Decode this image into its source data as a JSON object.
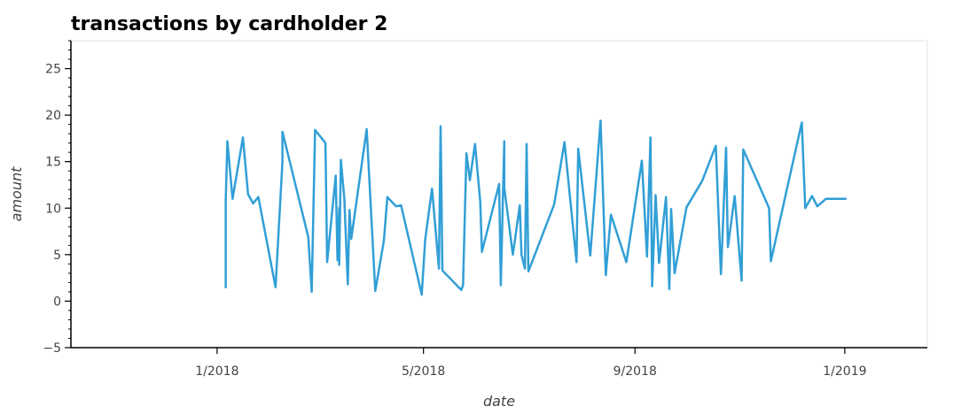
{
  "chart_data": {
    "type": "line",
    "title": "transactions by cardholder 2",
    "xlabel": "date",
    "ylabel": "amount",
    "xlim": [
      "2017-10-08",
      "2019-02-18"
    ],
    "ylim": [
      -5,
      28
    ],
    "x_ticks": [
      {
        "date": "2018-01-01",
        "label": "1/2018"
      },
      {
        "date": "2018-05-01",
        "label": "5/2018"
      },
      {
        "date": "2018-09-01",
        "label": "9/2018"
      },
      {
        "date": "2019-01-01",
        "label": "1/2019"
      }
    ],
    "y_ticks": [
      -5,
      0,
      5,
      10,
      15,
      20,
      25
    ],
    "y_minor_step": 1,
    "series_color": "#319fd6",
    "series": [
      {
        "x": [
          "2018-01-06",
          "2018-01-06",
          "2018-01-07",
          "2018-01-10",
          "2018-01-16",
          "2018-01-19",
          "2018-01-22",
          "2018-01-25",
          "2018-02-04",
          "2018-02-08",
          "2018-02-08",
          "2018-02-23",
          "2018-02-25",
          "2018-02-27",
          "2018-03-05",
          "2018-03-06",
          "2018-03-11",
          "2018-03-12",
          "2018-03-13",
          "2018-03-13",
          "2018-03-14",
          "2018-03-16",
          "2018-03-18",
          "2018-03-19",
          "2018-03-20",
          "2018-03-29",
          "2018-04-03",
          "2018-04-08",
          "2018-04-10",
          "2018-04-15",
          "2018-04-18",
          "2018-04-30",
          "2018-05-02",
          "2018-05-06",
          "2018-05-10",
          "2018-05-11",
          "2018-05-12",
          "2018-05-23",
          "2018-05-24",
          "2018-05-26",
          "2018-05-28",
          "2018-05-31",
          "2018-06-03",
          "2018-06-04",
          "2018-06-14",
          "2018-06-15",
          "2018-06-17",
          "2018-06-17",
          "2018-06-22",
          "2018-06-26",
          "2018-06-27",
          "2018-06-29",
          "2018-06-30",
          "2018-07-01",
          "2018-07-16",
          "2018-07-22",
          "2018-07-29",
          "2018-07-30",
          "2018-08-06",
          "2018-08-12",
          "2018-08-15",
          "2018-08-18",
          "2018-08-27",
          "2018-09-05",
          "2018-09-08",
          "2018-09-10",
          "2018-09-11",
          "2018-09-13",
          "2018-09-15",
          "2018-09-19",
          "2018-09-21",
          "2018-09-22",
          "2018-09-24",
          "2018-10-01",
          "2018-10-10",
          "2018-10-18",
          "2018-10-21",
          "2018-10-24",
          "2018-10-25",
          "2018-10-29",
          "2018-11-02",
          "2018-11-03",
          "2018-11-18",
          "2018-11-19",
          "2018-12-07",
          "2018-12-09",
          "2018-12-13",
          "2018-12-16",
          "2018-12-21",
          "2018-12-21",
          "2018-12-23",
          "2018-12-28",
          "2019-01-02"
        ],
        "values": [
          1.4,
          10.8,
          17.2,
          11.0,
          17.6,
          11.5,
          10.5,
          11.2,
          1.5,
          15.0,
          18.2,
          6.9,
          1.0,
          18.4,
          17.0,
          4.2,
          13.5,
          4.4,
          10.0,
          3.9,
          15.2,
          11.0,
          1.8,
          9.8,
          6.7,
          18.5,
          1.1,
          6.5,
          11.2,
          10.2,
          10.3,
          0.7,
          6.6,
          12.1,
          3.5,
          18.8,
          3.3,
          1.2,
          1.7,
          15.9,
          13.0,
          16.9,
          10.7,
          5.3,
          12.6,
          1.7,
          17.2,
          12.2,
          5.0,
          10.3,
          5.0,
          3.5,
          16.9,
          3.2,
          10.4,
          17.1,
          4.2,
          16.4,
          4.9,
          19.4,
          2.8,
          9.3,
          4.2,
          15.1,
          4.8,
          17.6,
          1.6,
          11.4,
          4.1,
          11.2,
          1.3,
          9.9,
          3.0,
          10.1,
          12.9,
          16.7,
          2.9,
          16.5,
          5.8,
          11.3,
          2.2,
          16.3,
          10.0,
          4.3,
          19.2,
          10.0,
          11.3,
          10.2,
          11.0,
          11.0,
          11.0,
          11.0,
          11.0
        ]
      }
    ]
  }
}
